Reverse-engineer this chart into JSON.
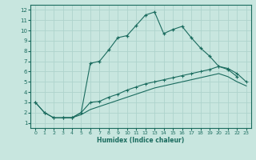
{
  "xlabel": "Humidex (Indice chaleur)",
  "ylabel": "",
  "bg_color": "#c8e6df",
  "grid_color": "#aed4cc",
  "line_color": "#1a6b5e",
  "xlim": [
    -0.5,
    23.5
  ],
  "ylim": [
    0.5,
    12.5
  ],
  "xticks": [
    0,
    1,
    2,
    3,
    4,
    5,
    6,
    7,
    8,
    9,
    10,
    11,
    12,
    13,
    14,
    15,
    16,
    17,
    18,
    19,
    20,
    21,
    22,
    23
  ],
  "yticks": [
    1,
    2,
    3,
    4,
    5,
    6,
    7,
    8,
    9,
    10,
    11,
    12
  ],
  "line1_x": [
    0,
    1,
    2,
    3,
    4,
    5,
    6,
    7,
    8,
    9,
    10,
    11,
    12,
    13,
    14,
    15,
    16,
    17,
    18,
    19,
    20,
    21,
    22
  ],
  "line1_y": [
    3.0,
    2.0,
    1.5,
    1.5,
    1.5,
    2.0,
    6.8,
    7.0,
    8.1,
    9.3,
    9.5,
    10.5,
    11.5,
    11.8,
    9.7,
    10.1,
    10.4,
    9.3,
    8.3,
    7.5,
    6.5,
    6.2,
    5.5
  ],
  "line2_x": [
    0,
    1,
    2,
    3,
    4,
    5,
    6,
    7,
    8,
    9,
    10,
    11,
    12,
    13,
    14,
    15,
    16,
    17,
    18,
    19,
    20,
    21,
    22,
    23
  ],
  "line2_y": [
    3.0,
    2.0,
    1.5,
    1.5,
    1.5,
    2.0,
    3.0,
    3.1,
    3.5,
    3.8,
    4.2,
    4.5,
    4.8,
    5.0,
    5.2,
    5.4,
    5.6,
    5.8,
    6.0,
    6.2,
    6.5,
    6.3,
    5.8,
    5.0
  ],
  "line3_x": [
    3,
    4,
    5,
    6,
    7,
    8,
    9,
    10,
    11,
    12,
    13,
    14,
    15,
    16,
    17,
    18,
    19,
    20,
    21,
    22,
    23
  ],
  "line3_y": [
    1.5,
    1.5,
    1.8,
    2.3,
    2.6,
    2.9,
    3.2,
    3.5,
    3.8,
    4.1,
    4.4,
    4.6,
    4.8,
    5.0,
    5.2,
    5.4,
    5.6,
    5.8,
    5.5,
    5.0,
    4.6
  ],
  "figsize": [
    3.2,
    2.0
  ],
  "dpi": 100
}
